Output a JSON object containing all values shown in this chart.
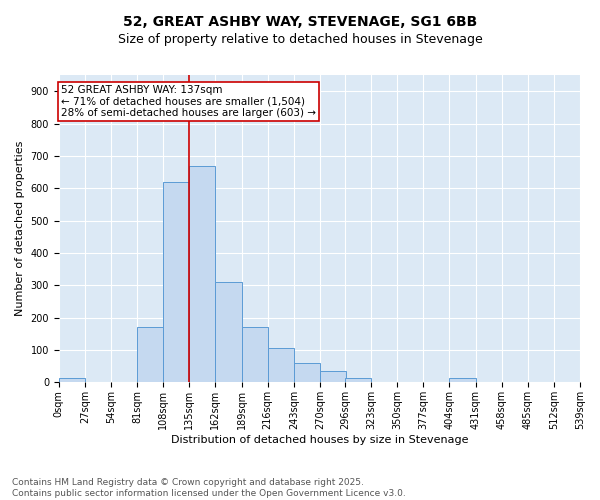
{
  "title_line1": "52, GREAT ASHBY WAY, STEVENAGE, SG1 6BB",
  "title_line2": "Size of property relative to detached houses in Stevenage",
  "xlabel": "Distribution of detached houses by size in Stevenage",
  "ylabel": "Number of detached properties",
  "bin_edges": [
    0,
    27,
    54,
    81,
    108,
    135,
    162,
    189,
    216,
    243,
    270,
    296,
    323,
    350,
    377,
    404,
    431,
    458,
    485,
    512,
    539
  ],
  "bar_heights": [
    15,
    0,
    0,
    170,
    620,
    670,
    310,
    170,
    105,
    60,
    35,
    15,
    0,
    0,
    0,
    15,
    0,
    0,
    0,
    0
  ],
  "bar_color": "#c5d9f0",
  "bar_edge_color": "#5b9bd5",
  "property_line_x": 135,
  "property_line_color": "#cc0000",
  "annotation_text": "52 GREAT ASHBY WAY: 137sqm\n← 71% of detached houses are smaller (1,504)\n28% of semi-detached houses are larger (603) →",
  "annotation_box_color": "#cc0000",
  "annotation_fill": "#ffffff",
  "ylim": [
    0,
    950
  ],
  "yticks": [
    0,
    100,
    200,
    300,
    400,
    500,
    600,
    700,
    800,
    900
  ],
  "xlim": [
    0,
    539
  ],
  "background_color": "#dce9f5",
  "footer_line1": "Contains HM Land Registry data © Crown copyright and database right 2025.",
  "footer_line2": "Contains public sector information licensed under the Open Government Licence v3.0.",
  "title_fontsize": 10,
  "subtitle_fontsize": 9,
  "axis_label_fontsize": 8,
  "tick_fontsize": 7,
  "annotation_fontsize": 7.5,
  "footer_fontsize": 6.5
}
